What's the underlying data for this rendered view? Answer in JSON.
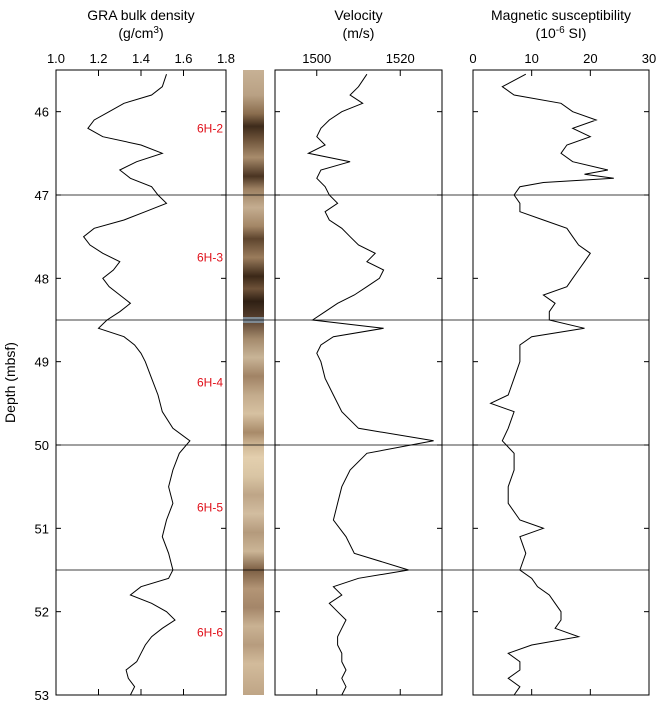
{
  "chart_data": {
    "type": "line",
    "ylabel": "Depth (mbsf)",
    "ylim": [
      45.5,
      53
    ],
    "y_reversed": true,
    "y_ticks": [
      46,
      47,
      48,
      49,
      50,
      51,
      52,
      53
    ],
    "section_boundaries": [
      47.0,
      48.5,
      50.0,
      51.5
    ],
    "sections": [
      {
        "label": "6H-2",
        "depth": 46.2
      },
      {
        "label": "6H-3",
        "depth": 47.75
      },
      {
        "label": "6H-4",
        "depth": 49.25
      },
      {
        "label": "6H-5",
        "depth": 50.75
      },
      {
        "label": "6H-6",
        "depth": 52.25
      }
    ],
    "panels": [
      {
        "key": "density",
        "title_line1": "GRA bulk density",
        "title_line2": "(g/cm",
        "title_sup": "3",
        "title_line2_end": ")",
        "xlim": [
          1.0,
          1.8
        ],
        "x_ticks": [
          1.0,
          1.2,
          1.4,
          1.6,
          1.8
        ],
        "x_tick_labels": [
          "1.0",
          "1.2",
          "1.4",
          "1.6",
          "1.8"
        ],
        "depth": [
          45.55,
          45.7,
          45.8,
          45.9,
          46.0,
          46.1,
          46.2,
          46.3,
          46.4,
          46.5,
          46.6,
          46.7,
          46.8,
          46.9,
          47.0,
          47.1,
          47.2,
          47.3,
          47.4,
          47.5,
          47.6,
          47.7,
          47.8,
          47.9,
          48.0,
          48.1,
          48.2,
          48.3,
          48.4,
          48.5,
          48.6,
          48.7,
          48.8,
          48.9,
          49.0,
          49.2,
          49.4,
          49.6,
          49.8,
          49.95,
          50.1,
          50.3,
          50.5,
          50.7,
          50.9,
          51.1,
          51.3,
          51.5,
          51.6,
          51.7,
          51.8,
          51.9,
          52.0,
          52.1,
          52.2,
          52.3,
          52.4,
          52.5,
          52.6,
          52.7,
          52.8,
          52.9,
          53.0
        ],
        "values": [
          1.52,
          1.5,
          1.45,
          1.32,
          1.25,
          1.18,
          1.15,
          1.22,
          1.4,
          1.5,
          1.38,
          1.3,
          1.35,
          1.45,
          1.48,
          1.52,
          1.42,
          1.32,
          1.18,
          1.13,
          1.16,
          1.22,
          1.3,
          1.27,
          1.22,
          1.25,
          1.3,
          1.35,
          1.3,
          1.24,
          1.2,
          1.32,
          1.37,
          1.4,
          1.42,
          1.45,
          1.48,
          1.5,
          1.55,
          1.63,
          1.58,
          1.55,
          1.53,
          1.55,
          1.52,
          1.5,
          1.53,
          1.55,
          1.53,
          1.4,
          1.35,
          1.45,
          1.52,
          1.56,
          1.5,
          1.45,
          1.42,
          1.4,
          1.38,
          1.33,
          1.34,
          1.37,
          1.35
        ]
      },
      {
        "key": "velocity",
        "title_line1": "Velocity",
        "title_line2": "(m/s)",
        "xlim": [
          1490,
          1530
        ],
        "x_ticks": [
          1500,
          1520
        ],
        "x_tick_labels": [
          "1500",
          "1520"
        ],
        "depth": [
          45.55,
          45.7,
          45.8,
          45.9,
          46.0,
          46.1,
          46.2,
          46.3,
          46.4,
          46.5,
          46.6,
          46.7,
          46.8,
          46.9,
          47.0,
          47.1,
          47.2,
          47.3,
          47.4,
          47.5,
          47.6,
          47.7,
          47.8,
          47.9,
          48.0,
          48.1,
          48.2,
          48.3,
          48.4,
          48.5,
          48.6,
          48.7,
          48.8,
          48.9,
          49.0,
          49.2,
          49.4,
          49.6,
          49.8,
          49.95,
          50.1,
          50.3,
          50.5,
          50.7,
          50.9,
          51.1,
          51.3,
          51.5,
          51.6,
          51.7,
          51.8,
          51.9,
          52.0,
          52.1,
          52.2,
          52.3,
          52.4,
          52.5,
          52.6,
          52.7,
          52.8,
          52.9,
          53.0
        ],
        "values": [
          1512,
          1510,
          1508,
          1511,
          1506,
          1503,
          1501,
          1500,
          1502,
          1498,
          1508,
          1501,
          1500,
          1502,
          1503,
          1505,
          1502,
          1503,
          1506,
          1508,
          1510,
          1514,
          1512,
          1516,
          1515,
          1512,
          1509,
          1505,
          1502,
          1499,
          1516,
          1504,
          1501,
          1500,
          1501,
          1502,
          1504,
          1506,
          1510,
          1528,
          1512,
          1508,
          1506,
          1505,
          1504,
          1507,
          1509,
          1522,
          1510,
          1504,
          1506,
          1503,
          1505,
          1507,
          1506,
          1505,
          1505,
          1506,
          1506,
          1507,
          1506,
          1507,
          1506
        ]
      },
      {
        "key": "magsus",
        "title_line1": "Magnetic susceptibility",
        "title_line2": "(10",
        "title_sup": "-6",
        "title_line2_end": " SI)",
        "xlim": [
          0,
          30
        ],
        "x_ticks": [
          0,
          10,
          20,
          30
        ],
        "x_tick_labels": [
          "0",
          "10",
          "20",
          "30"
        ],
        "depth": [
          45.55,
          45.7,
          45.8,
          45.9,
          46.0,
          46.1,
          46.2,
          46.3,
          46.4,
          46.5,
          46.6,
          46.7,
          46.75,
          46.8,
          46.85,
          46.9,
          47.0,
          47.1,
          47.2,
          47.3,
          47.4,
          47.5,
          47.6,
          47.7,
          47.8,
          47.9,
          48.0,
          48.1,
          48.2,
          48.3,
          48.4,
          48.5,
          48.6,
          48.7,
          48.8,
          48.9,
          49.0,
          49.2,
          49.4,
          49.5,
          49.6,
          49.8,
          49.95,
          50.1,
          50.3,
          50.5,
          50.7,
          50.9,
          51.0,
          51.1,
          51.3,
          51.5,
          51.6,
          51.7,
          51.8,
          51.9,
          52.0,
          52.1,
          52.2,
          52.3,
          52.4,
          52.5,
          52.6,
          52.7,
          52.8,
          52.9,
          53.0
        ],
        "values": [
          9,
          5,
          7,
          15,
          17,
          21,
          17,
          20,
          16,
          15,
          17,
          23,
          19,
          24,
          12,
          8,
          7,
          8,
          8,
          12,
          16,
          17,
          18,
          20,
          19,
          18,
          17,
          16,
          12,
          14,
          13,
          13,
          19,
          10,
          8,
          8,
          8,
          7,
          6,
          3,
          7,
          6,
          5,
          7,
          7,
          6,
          6,
          8,
          12,
          8,
          9,
          8,
          10,
          11,
          13,
          14,
          15,
          15,
          14,
          18,
          10,
          6,
          8,
          8,
          6,
          8,
          7
        ]
      }
    ]
  }
}
